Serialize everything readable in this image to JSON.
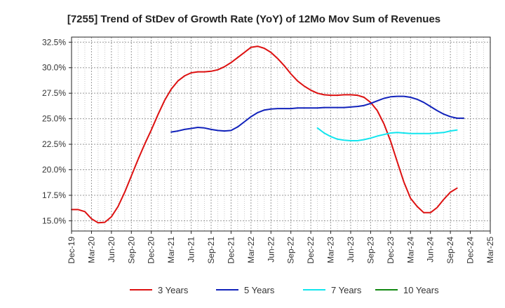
{
  "chart_data": {
    "type": "line",
    "title": "[7255]  Trend of StDev of Growth Rate (YoY) of 12Mo Mov Sum of Revenues",
    "xlabel": "",
    "ylabel": "",
    "ylim": [
      14.0,
      33.0
    ],
    "y_ticks": [
      15.0,
      17.5,
      20.0,
      22.5,
      25.0,
      27.5,
      30.0,
      32.5
    ],
    "y_tick_labels": [
      "15.0%",
      "17.5%",
      "20.0%",
      "22.5%",
      "25.0%",
      "27.5%",
      "30.0%",
      "32.5%"
    ],
    "x_tick_labels": [
      "Dec-19",
      "Mar-20",
      "Jun-20",
      "Sep-20",
      "Dec-20",
      "Mar-21",
      "Jun-21",
      "Sep-21",
      "Dec-21",
      "Mar-22",
      "Jun-22",
      "Sep-22",
      "Dec-22",
      "Mar-23",
      "Jun-23",
      "Sep-23",
      "Dec-23",
      "Mar-24",
      "Jun-24",
      "Sep-24",
      "Dec-24",
      "Mar-25"
    ],
    "grid": true,
    "legend_position": "bottom",
    "series": [
      {
        "name": "3 Years",
        "color": "#dd1111",
        "start_index": 0,
        "values": [
          16.1,
          16.1,
          15.9,
          15.2,
          14.8,
          14.85,
          15.4,
          16.4,
          17.8,
          19.4,
          21.0,
          22.5,
          23.9,
          25.4,
          26.8,
          27.9,
          28.7,
          29.2,
          29.5,
          29.6,
          29.6,
          29.65,
          29.8,
          30.1,
          30.5,
          31.0,
          31.5,
          32.0,
          32.1,
          31.9,
          31.5,
          30.9,
          30.2,
          29.4,
          28.7,
          28.2,
          27.8,
          27.5,
          27.35,
          27.3,
          27.3,
          27.35,
          27.35,
          27.3,
          27.1,
          26.6,
          25.8,
          24.5,
          22.8,
          20.8,
          18.8,
          17.2,
          16.4,
          15.8,
          15.8,
          16.3,
          17.1,
          17.8,
          18.2
        ]
      },
      {
        "name": "5 Years",
        "color": "#1122bb",
        "start_index": 15,
        "values": [
          23.7,
          23.8,
          23.95,
          24.05,
          24.15,
          24.1,
          23.95,
          23.85,
          23.8,
          23.85,
          24.2,
          24.7,
          25.2,
          25.6,
          25.85,
          25.95,
          26.0,
          26.0,
          26.0,
          26.05,
          26.05,
          26.05,
          26.05,
          26.1,
          26.1,
          26.1,
          26.1,
          26.15,
          26.2,
          26.3,
          26.5,
          26.75,
          27.0,
          27.15,
          27.2,
          27.2,
          27.1,
          26.9,
          26.6,
          26.2,
          25.8,
          25.45,
          25.2,
          25.05,
          25.05
        ]
      },
      {
        "name": "7 Years",
        "color": "#11e5ee",
        "start_index": 37,
        "values": [
          24.1,
          23.6,
          23.25,
          23.0,
          22.9,
          22.85,
          22.85,
          22.95,
          23.1,
          23.3,
          23.45,
          23.6,
          23.65,
          23.6,
          23.55,
          23.55,
          23.55,
          23.55,
          23.6,
          23.65,
          23.8,
          23.9
        ]
      },
      {
        "name": "10 Years",
        "color": "#118811",
        "start_index": 0,
        "values": []
      }
    ]
  }
}
